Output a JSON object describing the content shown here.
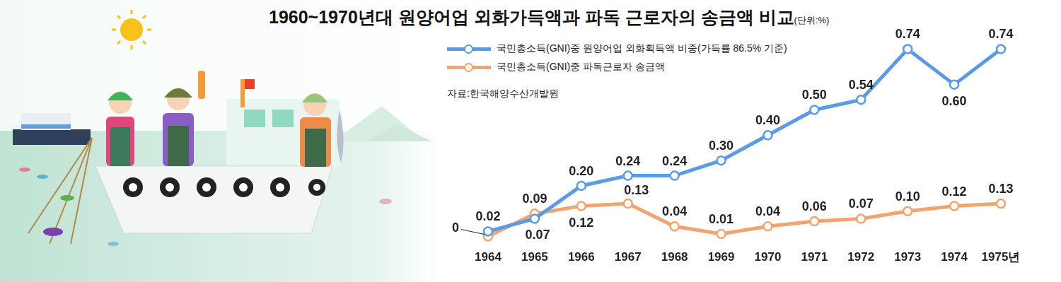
{
  "chart_data": {
    "type": "line",
    "title": "1960~1970년대 원양어업 외화가득액과 파독 근로자의 송금액 비교",
    "subtitle": "(단위:%)",
    "annotations": [
      "자료:한국해양수산개발원"
    ],
    "categories": [
      "1964",
      "1965",
      "1966",
      "1967",
      "1968",
      "1969",
      "1970",
      "1971",
      "1972",
      "1973",
      "1974",
      "1975년"
    ],
    "series": [
      {
        "name": "국민총소득(GNI)중 원양어업 외화획득액 비중(가득률 86.5% 기준)",
        "color": "#5b9be6",
        "marker": "circle",
        "values": [
          0.02,
          0.07,
          0.2,
          0.24,
          0.24,
          0.3,
          0.4,
          0.5,
          0.54,
          0.74,
          0.6,
          0.74
        ],
        "value_labels": [
          "0.02",
          "0.07",
          "0.20",
          "0.24",
          "0.24",
          "0.30",
          "0.40",
          "0.50",
          "0.54",
          "0.74",
          "0.60",
          "0.74"
        ]
      },
      {
        "name": "국민총소득(GNI)중 파독근로자 송금액",
        "color": "#f2a470",
        "marker": "circle",
        "values": [
          0,
          0.09,
          0.12,
          0.13,
          0.04,
          0.01,
          0.04,
          0.06,
          0.07,
          0.1,
          0.12,
          0.13
        ],
        "value_labels": [
          "0",
          "0.09",
          "0.12",
          "0.13",
          "0.04",
          "0.01",
          "0.04",
          "0.06",
          "0.07",
          "0.10",
          "0.12",
          "0.13"
        ]
      }
    ],
    "ylim": [
      0,
      0.8
    ],
    "grid": false,
    "legend": "top-left",
    "data_labels": true,
    "tick_labels": "x"
  }
}
